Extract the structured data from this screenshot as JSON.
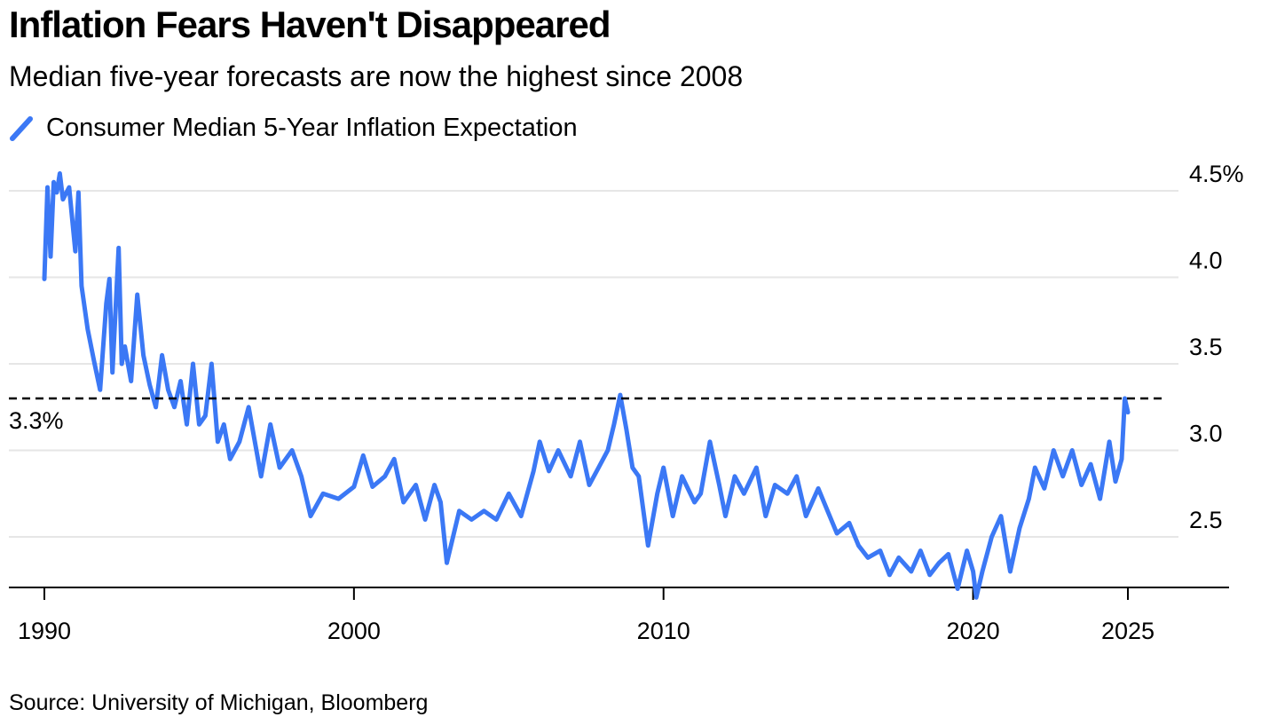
{
  "chart_data": {
    "type": "line",
    "title": "Inflation Fears Haven't Disappeared",
    "subtitle": "Median five-year forecasts are now the highest since 2008",
    "source": "Source: University of Michigan, Bloomberg",
    "xlabel": "",
    "ylabel": "",
    "xlim": [
      1989.5,
      2028.5
    ],
    "ylim": [
      2.22,
      4.5
    ],
    "x_ticks": [
      1990,
      2000,
      2010,
      2020,
      2025
    ],
    "x_tick_labels": [
      "1990",
      "2000",
      "2010",
      "2020",
      "2025"
    ],
    "y_ticks": [
      2.5,
      3.0,
      3.5,
      4.0,
      4.5
    ],
    "y_tick_labels": [
      "2.5",
      "3.0",
      "3.5",
      "4.0",
      "4.5%"
    ],
    "grid": true,
    "legend_position": "top-left",
    "colors": {
      "series": "#3b78f5",
      "grid": "#e6e6e6",
      "axis": "#000000",
      "reference": "#000000"
    },
    "reference_line": {
      "value": 3.3,
      "label": "3.3%",
      "style": "dashed"
    },
    "series": [
      {
        "name": "Consumer Median 5-Year Inflation Expectation",
        "x": [
          1990.0,
          1990.1,
          1990.2,
          1990.3,
          1990.4,
          1990.5,
          1990.6,
          1990.8,
          1991.0,
          1991.1,
          1991.2,
          1991.4,
          1991.6,
          1991.8,
          1992.0,
          1992.1,
          1992.2,
          1992.4,
          1992.5,
          1992.6,
          1992.8,
          1993.0,
          1993.2,
          1993.4,
          1993.6,
          1993.8,
          1994.0,
          1994.2,
          1994.4,
          1994.6,
          1994.8,
          1995.0,
          1995.2,
          1995.4,
          1995.6,
          1995.8,
          1996.0,
          1996.3,
          1996.6,
          1997.0,
          1997.3,
          1997.6,
          1998.0,
          1998.3,
          1998.6,
          1999.0,
          1999.5,
          2000.0,
          2000.3,
          2000.6,
          2001.0,
          2001.3,
          2001.6,
          2002.0,
          2002.3,
          2002.6,
          2002.8,
          2003.0,
          2003.4,
          2003.8,
          2004.2,
          2004.6,
          2005.0,
          2005.4,
          2005.8,
          2006.0,
          2006.3,
          2006.6,
          2007.0,
          2007.3,
          2007.6,
          2007.9,
          2008.2,
          2008.4,
          2008.6,
          2008.8,
          2009.0,
          2009.2,
          2009.5,
          2009.8,
          2010.0,
          2010.3,
          2010.6,
          2011.0,
          2011.2,
          2011.5,
          2011.8,
          2012.0,
          2012.3,
          2012.6,
          2013.0,
          2013.3,
          2013.6,
          2014.0,
          2014.3,
          2014.6,
          2015.0,
          2015.3,
          2015.6,
          2016.0,
          2016.3,
          2016.6,
          2017.0,
          2017.3,
          2017.6,
          2018.0,
          2018.3,
          2018.6,
          2018.9,
          2019.2,
          2019.5,
          2019.8,
          2020.0,
          2020.1,
          2020.3,
          2020.6,
          2020.9,
          2021.2,
          2021.5,
          2021.8,
          2022.0,
          2022.3,
          2022.6,
          2022.9,
          2023.2,
          2023.5,
          2023.8,
          2024.1,
          2024.4,
          2024.6,
          2024.8,
          2024.9,
          2025.0
        ],
        "y": [
          3.99,
          4.52,
          4.12,
          4.55,
          4.49,
          4.6,
          4.45,
          4.52,
          4.15,
          4.49,
          3.95,
          3.7,
          3.52,
          3.35,
          3.85,
          3.99,
          3.45,
          4.17,
          3.5,
          3.6,
          3.4,
          3.9,
          3.55,
          3.38,
          3.25,
          3.55,
          3.35,
          3.25,
          3.4,
          3.15,
          3.5,
          3.15,
          3.2,
          3.5,
          3.05,
          3.15,
          2.95,
          3.05,
          3.25,
          2.85,
          3.15,
          2.9,
          3.0,
          2.85,
          2.62,
          2.75,
          2.72,
          2.79,
          2.97,
          2.79,
          2.85,
          2.95,
          2.7,
          2.8,
          2.6,
          2.8,
          2.7,
          2.35,
          2.65,
          2.6,
          2.65,
          2.6,
          2.75,
          2.62,
          2.88,
          3.05,
          2.88,
          3.0,
          2.85,
          3.05,
          2.8,
          2.9,
          3.0,
          3.15,
          3.32,
          3.12,
          2.9,
          2.85,
          2.45,
          2.75,
          2.9,
          2.62,
          2.85,
          2.7,
          2.75,
          3.05,
          2.8,
          2.62,
          2.85,
          2.75,
          2.9,
          2.62,
          2.8,
          2.75,
          2.85,
          2.62,
          2.78,
          2.65,
          2.52,
          2.58,
          2.45,
          2.38,
          2.42,
          2.28,
          2.38,
          2.3,
          2.42,
          2.28,
          2.35,
          2.4,
          2.2,
          2.42,
          2.3,
          2.15,
          2.3,
          2.5,
          2.62,
          2.3,
          2.55,
          2.72,
          2.9,
          2.78,
          3.0,
          2.85,
          3.0,
          2.8,
          2.92,
          2.72,
          3.05,
          2.82,
          2.95,
          3.3,
          3.22
        ]
      }
    ]
  }
}
